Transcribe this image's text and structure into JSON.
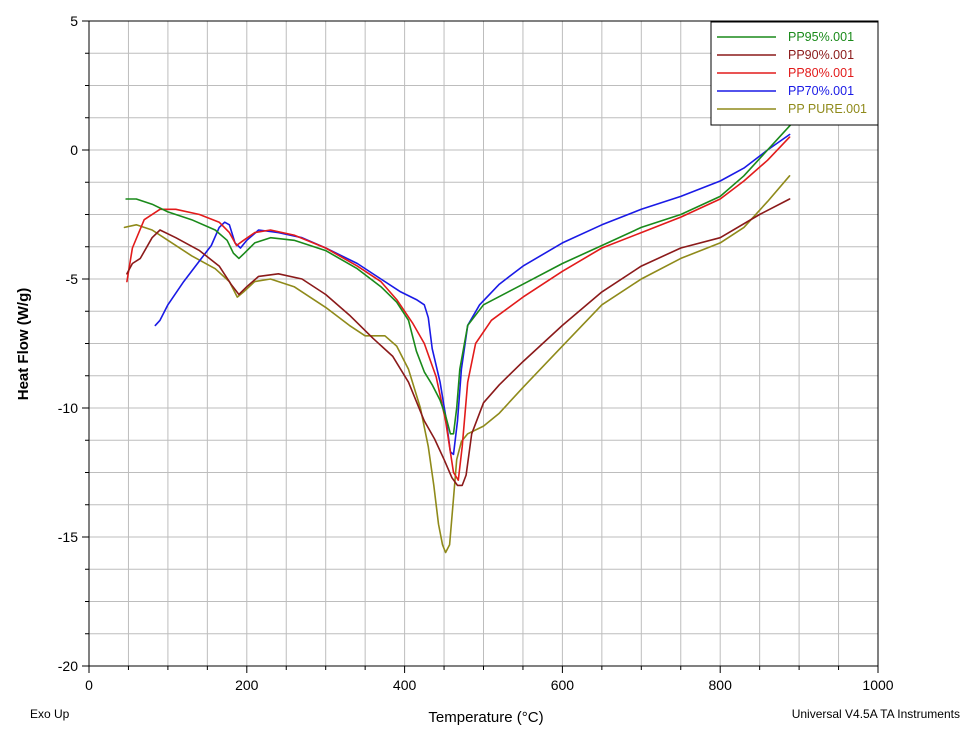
{
  "footer": {
    "left": "Exo Up",
    "right": "Universal V4.5A TA Instruments"
  },
  "chart_data": {
    "type": "line",
    "xlabel": "Temperature (°C)",
    "ylabel": "Heat Flow (W/g)",
    "xlim": [
      0,
      1000
    ],
    "ylim": [
      -20,
      5
    ],
    "xticks": [
      0,
      200,
      400,
      600,
      800,
      1000
    ],
    "yticks": [
      5,
      0,
      -5,
      -10,
      -15,
      -20
    ],
    "grid": true,
    "legend_position": "top-right",
    "series": [
      {
        "name": "PP95%.001",
        "color": "#1a8a1a",
        "points": [
          [
            47,
            -1.9
          ],
          [
            60,
            -1.9
          ],
          [
            80,
            -2.1
          ],
          [
            100,
            -2.4
          ],
          [
            130,
            -2.7
          ],
          [
            160,
            -3.1
          ],
          [
            175,
            -3.5
          ],
          [
            183,
            -4.0
          ],
          [
            190,
            -4.2
          ],
          [
            197,
            -4.0
          ],
          [
            210,
            -3.6
          ],
          [
            230,
            -3.4
          ],
          [
            260,
            -3.5
          ],
          [
            300,
            -3.9
          ],
          [
            340,
            -4.6
          ],
          [
            370,
            -5.3
          ],
          [
            390,
            -5.9
          ],
          [
            405,
            -6.6
          ],
          [
            415,
            -7.8
          ],
          [
            425,
            -8.6
          ],
          [
            435,
            -9.1
          ],
          [
            445,
            -9.7
          ],
          [
            452,
            -10.3
          ],
          [
            458,
            -11.0
          ],
          [
            462,
            -11.0
          ],
          [
            466,
            -10.0
          ],
          [
            470,
            -8.5
          ],
          [
            480,
            -6.8
          ],
          [
            500,
            -6.0
          ],
          [
            550,
            -5.2
          ],
          [
            600,
            -4.4
          ],
          [
            650,
            -3.7
          ],
          [
            700,
            -3.0
          ],
          [
            750,
            -2.5
          ],
          [
            800,
            -1.8
          ],
          [
            830,
            -1.0
          ],
          [
            860,
            0.0
          ],
          [
            875,
            0.5
          ],
          [
            890,
            1.0
          ]
        ]
      },
      {
        "name": "PP90%.001",
        "color": "#8b1a1a",
        "points": [
          [
            48,
            -4.8
          ],
          [
            55,
            -4.4
          ],
          [
            65,
            -4.2
          ],
          [
            80,
            -3.4
          ],
          [
            90,
            -3.1
          ],
          [
            110,
            -3.4
          ],
          [
            140,
            -3.9
          ],
          [
            165,
            -4.5
          ],
          [
            180,
            -5.2
          ],
          [
            190,
            -5.6
          ],
          [
            200,
            -5.3
          ],
          [
            215,
            -4.9
          ],
          [
            240,
            -4.8
          ],
          [
            270,
            -5.0
          ],
          [
            300,
            -5.6
          ],
          [
            330,
            -6.4
          ],
          [
            360,
            -7.3
          ],
          [
            385,
            -8.0
          ],
          [
            405,
            -9.0
          ],
          [
            425,
            -10.5
          ],
          [
            438,
            -11.2
          ],
          [
            450,
            -12.0
          ],
          [
            460,
            -12.7
          ],
          [
            467,
            -13.0
          ],
          [
            473,
            -13.0
          ],
          [
            478,
            -12.6
          ],
          [
            485,
            -11.0
          ],
          [
            500,
            -9.8
          ],
          [
            520,
            -9.1
          ],
          [
            550,
            -8.2
          ],
          [
            600,
            -6.8
          ],
          [
            650,
            -5.5
          ],
          [
            700,
            -4.5
          ],
          [
            750,
            -3.8
          ],
          [
            800,
            -3.4
          ],
          [
            850,
            -2.5
          ],
          [
            888,
            -1.9
          ]
        ]
      },
      {
        "name": "PP80%.001",
        "color": "#e21b1b",
        "points": [
          [
            48,
            -5.1
          ],
          [
            55,
            -3.8
          ],
          [
            70,
            -2.7
          ],
          [
            90,
            -2.3
          ],
          [
            110,
            -2.3
          ],
          [
            140,
            -2.5
          ],
          [
            165,
            -2.8
          ],
          [
            178,
            -3.2
          ],
          [
            187,
            -3.7
          ],
          [
            196,
            -3.5
          ],
          [
            210,
            -3.2
          ],
          [
            230,
            -3.1
          ],
          [
            260,
            -3.3
          ],
          [
            300,
            -3.8
          ],
          [
            340,
            -4.5
          ],
          [
            370,
            -5.1
          ],
          [
            390,
            -5.8
          ],
          [
            410,
            -6.7
          ],
          [
            425,
            -7.5
          ],
          [
            440,
            -8.8
          ],
          [
            452,
            -10.5
          ],
          [
            462,
            -12.5
          ],
          [
            468,
            -12.8
          ],
          [
            473,
            -11.5
          ],
          [
            480,
            -9.0
          ],
          [
            490,
            -7.5
          ],
          [
            510,
            -6.6
          ],
          [
            550,
            -5.7
          ],
          [
            600,
            -4.7
          ],
          [
            650,
            -3.8
          ],
          [
            700,
            -3.2
          ],
          [
            750,
            -2.6
          ],
          [
            800,
            -1.9
          ],
          [
            830,
            -1.2
          ],
          [
            860,
            -0.4
          ],
          [
            888,
            0.5
          ]
        ]
      },
      {
        "name": "PP70%.001",
        "color": "#1a1ae6",
        "points": [
          [
            84,
            -6.8
          ],
          [
            90,
            -6.6
          ],
          [
            100,
            -6.0
          ],
          [
            120,
            -5.1
          ],
          [
            140,
            -4.3
          ],
          [
            155,
            -3.7
          ],
          [
            165,
            -3.0
          ],
          [
            172,
            -2.8
          ],
          [
            178,
            -2.9
          ],
          [
            185,
            -3.6
          ],
          [
            192,
            -3.8
          ],
          [
            200,
            -3.5
          ],
          [
            215,
            -3.1
          ],
          [
            240,
            -3.2
          ],
          [
            270,
            -3.4
          ],
          [
            300,
            -3.8
          ],
          [
            340,
            -4.4
          ],
          [
            370,
            -5.0
          ],
          [
            395,
            -5.5
          ],
          [
            415,
            -5.8
          ],
          [
            425,
            -6.0
          ],
          [
            430,
            -6.5
          ],
          [
            435,
            -7.7
          ],
          [
            445,
            -9.0
          ],
          [
            452,
            -10.3
          ],
          [
            458,
            -11.7
          ],
          [
            462,
            -11.8
          ],
          [
            467,
            -10.5
          ],
          [
            472,
            -8.5
          ],
          [
            480,
            -6.8
          ],
          [
            495,
            -6.0
          ],
          [
            520,
            -5.2
          ],
          [
            550,
            -4.5
          ],
          [
            600,
            -3.6
          ],
          [
            650,
            -2.9
          ],
          [
            700,
            -2.3
          ],
          [
            750,
            -1.8
          ],
          [
            800,
            -1.2
          ],
          [
            830,
            -0.7
          ],
          [
            860,
            0.0
          ],
          [
            888,
            0.6
          ]
        ]
      },
      {
        "name": "PP PURE.001",
        "color": "#8f8a1a",
        "points": [
          [
            45,
            -3.0
          ],
          [
            60,
            -2.9
          ],
          [
            80,
            -3.1
          ],
          [
            100,
            -3.5
          ],
          [
            130,
            -4.1
          ],
          [
            160,
            -4.6
          ],
          [
            178,
            -5.1
          ],
          [
            188,
            -5.7
          ],
          [
            196,
            -5.5
          ],
          [
            210,
            -5.1
          ],
          [
            230,
            -5.0
          ],
          [
            260,
            -5.3
          ],
          [
            300,
            -6.1
          ],
          [
            330,
            -6.8
          ],
          [
            350,
            -7.2
          ],
          [
            375,
            -7.2
          ],
          [
            390,
            -7.6
          ],
          [
            405,
            -8.5
          ],
          [
            420,
            -10.0
          ],
          [
            430,
            -11.5
          ],
          [
            437,
            -13.0
          ],
          [
            443,
            -14.5
          ],
          [
            448,
            -15.3
          ],
          [
            452,
            -15.6
          ],
          [
            457,
            -15.3
          ],
          [
            462,
            -13.5
          ],
          [
            466,
            -12.0
          ],
          [
            472,
            -11.3
          ],
          [
            480,
            -11.0
          ],
          [
            500,
            -10.7
          ],
          [
            520,
            -10.2
          ],
          [
            550,
            -9.2
          ],
          [
            600,
            -7.6
          ],
          [
            650,
            -6.0
          ],
          [
            700,
            -5.0
          ],
          [
            750,
            -4.2
          ],
          [
            800,
            -3.6
          ],
          [
            830,
            -3.0
          ],
          [
            860,
            -2.0
          ],
          [
            888,
            -1.0
          ]
        ]
      }
    ]
  }
}
